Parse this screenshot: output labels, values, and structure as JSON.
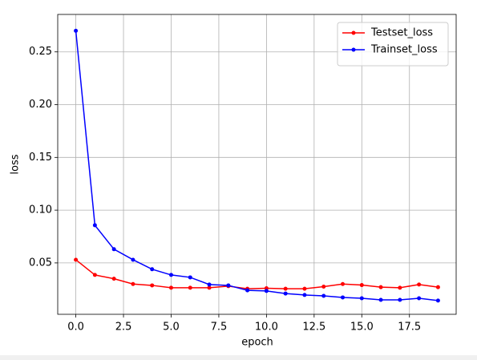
{
  "chart_data": {
    "type": "line",
    "xlabel": "epoch",
    "ylabel": "loss",
    "x": [
      0,
      1,
      2,
      3,
      4,
      5,
      6,
      7,
      8,
      9,
      10,
      11,
      12,
      13,
      14,
      15,
      16,
      17,
      18,
      19
    ],
    "series": [
      {
        "name": "Testset_loss",
        "color": "red",
        "values": [
          0.053,
          0.0386,
          0.035,
          0.03,
          0.0287,
          0.0265,
          0.0265,
          0.0265,
          0.028,
          0.0255,
          0.026,
          0.0255,
          0.0255,
          0.0275,
          0.03,
          0.029,
          0.027,
          0.0265,
          0.0295,
          0.027
        ]
      },
      {
        "name": "Trainset_loss",
        "color": "blue",
        "values": [
          0.27,
          0.0857,
          0.063,
          0.053,
          0.044,
          0.0386,
          0.0363,
          0.0295,
          0.0287,
          0.024,
          0.0234,
          0.021,
          0.0196,
          0.0188,
          0.0173,
          0.0165,
          0.015,
          0.015,
          0.0165,
          0.0143
        ]
      }
    ],
    "xlim": [
      -0.95,
      19.95
    ],
    "xticks": [
      {
        "value": 0,
        "label": "0.0"
      },
      {
        "value": 2.5,
        "label": "2.5"
      },
      {
        "value": 5,
        "label": "5.0"
      },
      {
        "value": 7.5,
        "label": "7.5"
      },
      {
        "value": 10,
        "label": "10.0"
      },
      {
        "value": 12.5,
        "label": "12.5"
      },
      {
        "value": 15,
        "label": "15.0"
      },
      {
        "value": 17.5,
        "label": "17.5"
      }
    ],
    "ylim": [
      0.0013,
      0.2855
    ],
    "yticks": [
      0.05,
      {
        "value": 0.1,
        "label": "0.10"
      },
      0.15,
      {
        "value": 0.2,
        "label": "0.20"
      },
      0.25
    ],
    "grid": true,
    "legend": "upper right"
  }
}
